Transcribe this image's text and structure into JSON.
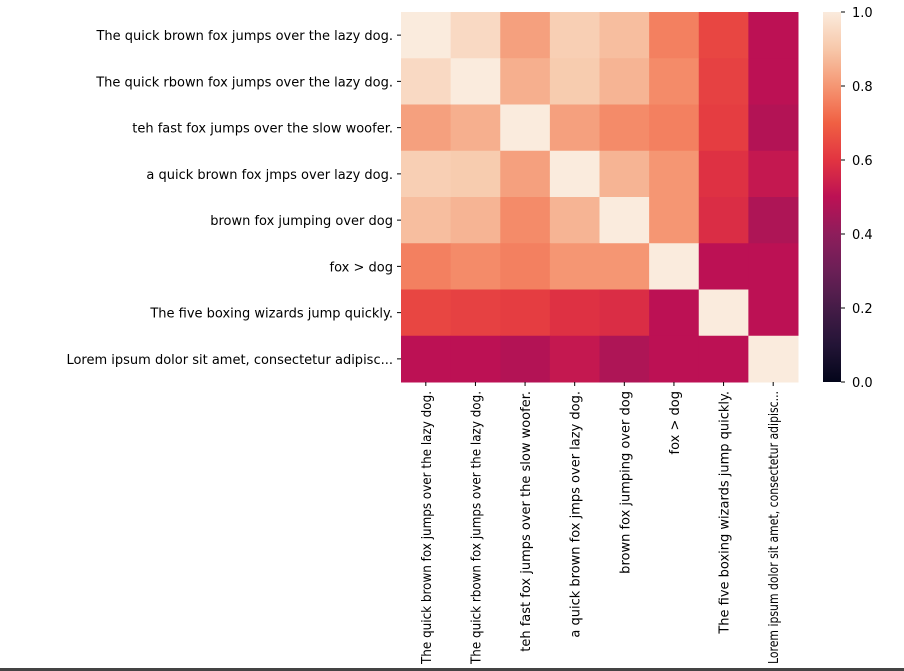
{
  "chart_data": {
    "type": "heatmap",
    "title": "",
    "xlabel": "",
    "ylabel": "",
    "row_labels": [
      "The quick brown fox jumps over the lazy dog.",
      "The quick rbown fox jumps over the lazy dog.",
      "teh fast fox jumps over the slow woofer.",
      "a quick brown fox jmps over lazy dog.",
      "brown fox jumping over dog",
      "fox > dog",
      "The five boxing wizards jump quickly.",
      "Lorem ipsum dolor sit amet, consectetur adipisc..."
    ],
    "col_labels": [
      "The quick brown fox jumps over the lazy dog.",
      "The quick rbown fox jumps over the lazy dog.",
      "teh fast fox jumps over the slow woofer.",
      "a quick brown fox jmps over lazy dog.",
      "brown fox jumping over dog",
      "fox > dog",
      "The five boxing wizards jump quickly.",
      "Lorem ipsum dolor sit amet, consectetur adipisc..."
    ],
    "values": [
      [
        1.0,
        0.95,
        0.82,
        0.92,
        0.88,
        0.76,
        0.64,
        0.5
      ],
      [
        0.95,
        1.0,
        0.85,
        0.91,
        0.86,
        0.78,
        0.63,
        0.5
      ],
      [
        0.82,
        0.85,
        1.0,
        0.82,
        0.78,
        0.76,
        0.62,
        0.48
      ],
      [
        0.92,
        0.91,
        0.82,
        1.0,
        0.86,
        0.8,
        0.59,
        0.52
      ],
      [
        0.88,
        0.86,
        0.78,
        0.86,
        1.0,
        0.8,
        0.58,
        0.47
      ],
      [
        0.76,
        0.78,
        0.76,
        0.8,
        0.8,
        1.0,
        0.5,
        0.5
      ],
      [
        0.64,
        0.63,
        0.62,
        0.59,
        0.58,
        0.5,
        1.0,
        0.5
      ],
      [
        0.5,
        0.5,
        0.48,
        0.52,
        0.47,
        0.5,
        0.5,
        1.0
      ]
    ],
    "colormap": "rocket",
    "vmin": 0.0,
    "vmax": 1.0,
    "colorbar": {
      "placement": "right",
      "ticks": [
        "0.0",
        "0.2",
        "0.4",
        "0.6",
        "0.8",
        "1.0"
      ]
    },
    "grid": false
  }
}
